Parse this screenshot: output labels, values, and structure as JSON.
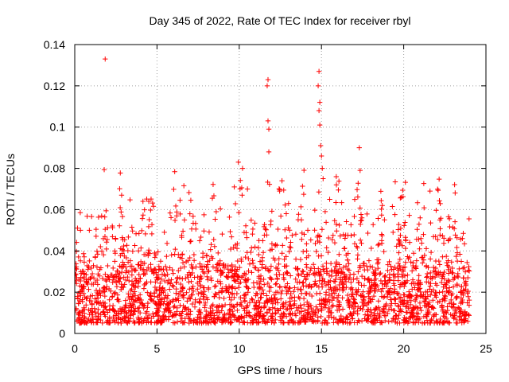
{
  "chart_data": {
    "type": "scatter",
    "title": "Day 345 of 2022, Rate Of TEC Index for receiver rbyl",
    "xlabel": "GPS time / hours",
    "ylabel": "ROTI / TECUs",
    "xlim": [
      0,
      25
    ],
    "ylim": [
      0,
      0.14
    ],
    "xticks": [
      0,
      5,
      10,
      15,
      20,
      25
    ],
    "yticks": [
      0,
      0.02,
      0.04,
      0.06,
      0.08,
      0.1,
      0.12,
      0.14
    ],
    "xtick_labels": [
      "0",
      "5",
      "10",
      "15",
      "20",
      "25"
    ],
    "ytick_labels": [
      "0",
      "0.02",
      "0.04",
      "0.06",
      "0.08",
      "0.1",
      "0.12",
      "0.14"
    ],
    "grid": true,
    "marker": "+",
    "series": [
      {
        "name": "ROTI",
        "color": "#ff0000",
        "time_range_hours": [
          0,
          24
        ],
        "baseline_band": [
          0.005,
          0.025
        ],
        "notable_points": [
          {
            "x": 1.85,
            "y": 0.133
          },
          {
            "x": 2.85,
            "y": 0.067
          },
          {
            "x": 9.95,
            "y": 0.083
          },
          {
            "x": 10.2,
            "y": 0.08
          },
          {
            "x": 11.75,
            "y": 0.123
          },
          {
            "x": 11.7,
            "y": 0.12
          },
          {
            "x": 11.75,
            "y": 0.103
          },
          {
            "x": 11.8,
            "y": 0.099
          },
          {
            "x": 11.8,
            "y": 0.088
          },
          {
            "x": 12.6,
            "y": 0.074
          },
          {
            "x": 14.85,
            "y": 0.127
          },
          {
            "x": 14.8,
            "y": 0.12
          },
          {
            "x": 14.9,
            "y": 0.112
          },
          {
            "x": 14.85,
            "y": 0.108
          },
          {
            "x": 14.9,
            "y": 0.101
          },
          {
            "x": 14.95,
            "y": 0.091
          },
          {
            "x": 15.0,
            "y": 0.086
          },
          {
            "x": 15.05,
            "y": 0.08
          },
          {
            "x": 15.1,
            "y": 0.075
          },
          {
            "x": 15.9,
            "y": 0.076
          },
          {
            "x": 17.3,
            "y": 0.09
          },
          {
            "x": 17.35,
            "y": 0.079
          },
          {
            "x": 19.85,
            "y": 0.066
          },
          {
            "x": 21.6,
            "y": 0.069
          },
          {
            "x": 0.35,
            "y": 0.05
          },
          {
            "x": 4.5,
            "y": 0.064
          },
          {
            "x": 6.2,
            "y": 0.057
          },
          {
            "x": 7.0,
            "y": 0.058
          },
          {
            "x": 8.6,
            "y": 0.059
          },
          {
            "x": 9.7,
            "y": 0.071
          },
          {
            "x": 10.5,
            "y": 0.07
          },
          {
            "x": 13.0,
            "y": 0.063
          },
          {
            "x": 15.5,
            "y": 0.065
          },
          {
            "x": 18.7,
            "y": 0.062
          },
          {
            "x": 21.0,
            "y": 0.056
          },
          {
            "x": 22.2,
            "y": 0.055
          },
          {
            "x": 23.9,
            "y": 0.027
          }
        ]
      }
    ]
  }
}
